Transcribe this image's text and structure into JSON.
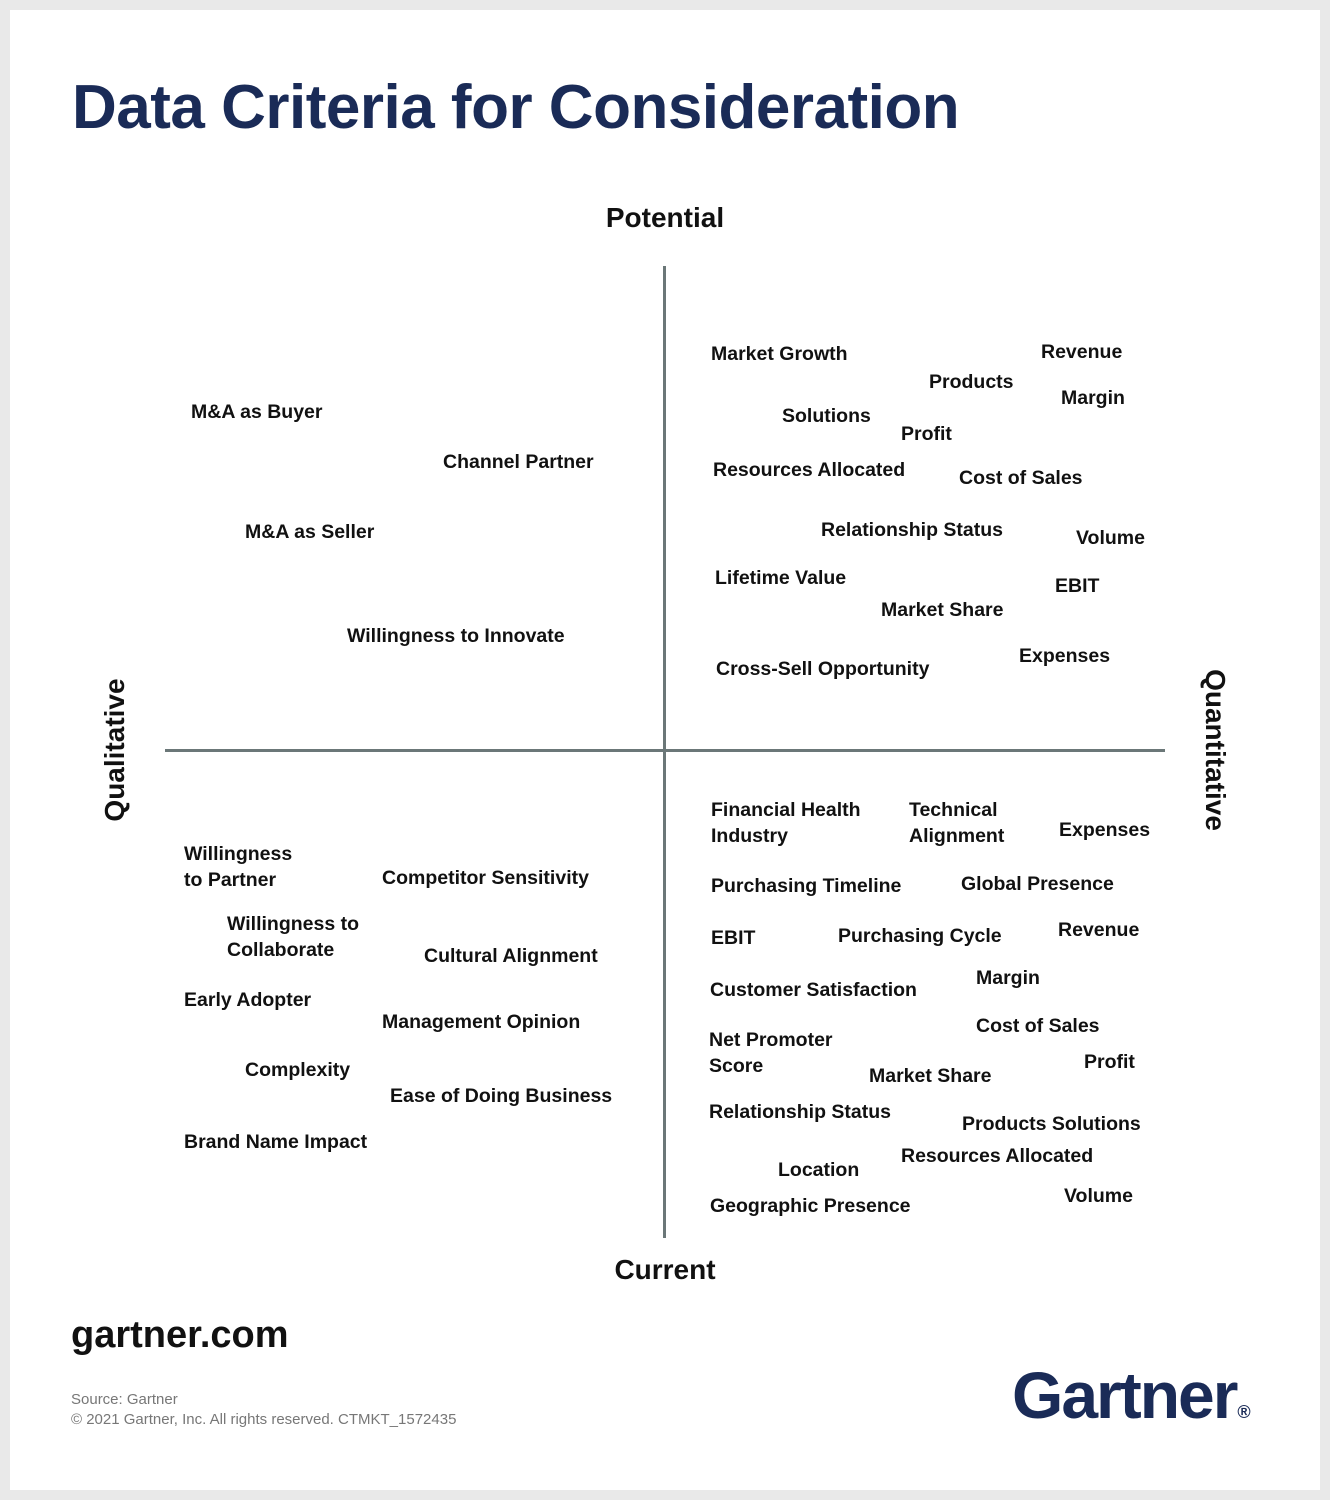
{
  "title": "Data Criteria for Consideration",
  "axes": {
    "top": "Potential",
    "bottom": "Current",
    "left": "Qualitative",
    "right": "Quantitative"
  },
  "quadrants": {
    "top_left": [
      "M&A as Buyer",
      "Channel Partner",
      "M&A as Seller",
      "Willingness to Innovate"
    ],
    "top_right": [
      "Market Growth",
      "Revenue",
      "Products",
      "Margin",
      "Solutions",
      "Profit",
      "Resources Allocated",
      "Cost of Sales",
      "Relationship Status",
      "Volume",
      "Lifetime Value",
      "EBIT",
      "Market Share",
      "Expenses",
      "Cross-Sell Opportunity"
    ],
    "bottom_left": [
      "Willingness\nto Partner",
      "Competitor Sensitivity",
      "Willingness to\nCollaborate",
      "Cultural Alignment",
      "Early Adopter",
      "Management Opinion",
      "Complexity",
      "Ease of Doing Business",
      "Brand Name Impact"
    ],
    "bottom_right": [
      "Financial Health\nIndustry",
      "Technical\nAlignment",
      "Expenses",
      "Purchasing Timeline",
      "Global Presence",
      "EBIT",
      "Purchasing Cycle",
      "Revenue",
      "Customer Satisfaction",
      "Margin",
      "Cost of Sales",
      "Net Promoter\nScore",
      "Profit",
      "Market Share",
      "Relationship Status",
      "Products Solutions",
      "Resources Allocated",
      "Location",
      "Volume",
      "Geographic Presence"
    ]
  },
  "footer": {
    "website": "gartner.com",
    "source": "Source: Gartner",
    "copyright": "© 2021 Gartner, Inc. All rights reserved. CTMKT_1572435",
    "logo": "Gartner",
    "logo_mark": "®"
  }
}
